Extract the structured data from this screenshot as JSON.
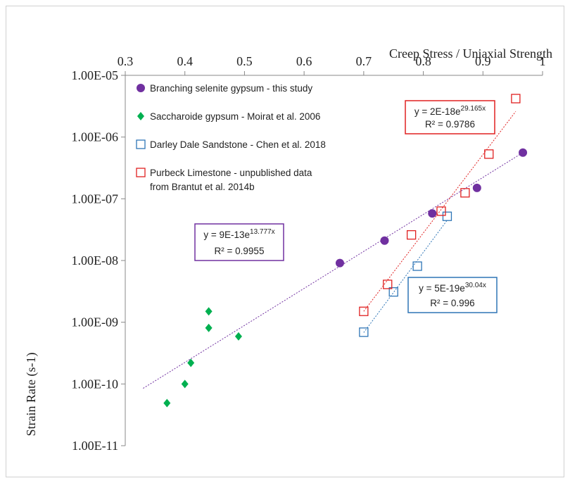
{
  "chart_data": {
    "type": "scatter",
    "xlabel": "Creep Stress / Uniaxial Strength",
    "ylabel": "Strain Rate (s-1)",
    "xlim": [
      0.3,
      1
    ],
    "xticks": [
      0.3,
      0.4,
      0.5,
      0.6,
      0.7,
      0.8,
      0.9,
      1
    ],
    "ylim": [
      1e-11,
      1e-05
    ],
    "log_y": true,
    "yticks": [
      {
        "value": 1e-05,
        "label": "1.00E-05"
      },
      {
        "value": 1e-06,
        "label": "1.00E-06"
      },
      {
        "value": 1e-07,
        "label": "1.00E-07"
      },
      {
        "value": 1e-08,
        "label": "1.00E-08"
      },
      {
        "value": 1e-09,
        "label": "1.00E-09"
      },
      {
        "value": 1e-10,
        "label": "1.00E-10"
      },
      {
        "value": 1e-11,
        "label": "1.00E-11"
      }
    ],
    "legend": "upper left",
    "series": [
      {
        "name": "Branching selenite gypsum - this study",
        "color": "#7030a0",
        "marker": "circle",
        "x": [
          0.66,
          0.735,
          0.815,
          0.89,
          0.967
        ],
        "values": [
          9.1e-09,
          2.1e-08,
          5.8e-08,
          1.5e-07,
          5.6e-07
        ],
        "trendline": {
          "x": [
            0.33,
            0.967
          ],
          "values": [
            8.5e-11,
            5.6e-07
          ]
        },
        "equation": {
          "text": "y = 9E-13e",
          "sup": "13.777x",
          "r2": "R² = 0.9955"
        }
      },
      {
        "name": "Saccharoide gypsum - Moirat et al. 2006",
        "color": "#00b050",
        "marker": "diamond",
        "x": [
          0.44,
          0.44,
          0.49,
          0.41,
          0.4,
          0.37
        ],
        "values": [
          1.5e-09,
          8.1e-10,
          5.9e-10,
          2.2e-10,
          1e-10,
          4.9e-11
        ]
      },
      {
        "name": "Darley Dale Sandstone - Chen et al. 2018",
        "color": "#2e75b6",
        "marker": "square",
        "x": [
          0.7,
          0.75,
          0.79,
          0.84
        ],
        "values": [
          6.9e-10,
          3.1e-09,
          8.1e-09,
          5.2e-08
        ],
        "trendline": {
          "x": [
            0.7,
            0.84
          ],
          "values": [
            6.8e-10,
            4.5e-08
          ]
        },
        "equation": {
          "text": "y = 5E-19e",
          "sup": "30.04x",
          "r2": "R² = 0.996"
        }
      },
      {
        "name": "Purbeck Limestone - unpublished data\nfrom Brantut et al. 2014b",
        "color": "#e02020",
        "marker": "square",
        "x": [
          0.7,
          0.74,
          0.78,
          0.83,
          0.87,
          0.91,
          0.955
        ],
        "values": [
          1.5e-09,
          4.1e-09,
          2.6e-08,
          6.3e-08,
          1.25e-07,
          5.3e-07,
          4.2e-06
        ],
        "trendline": {
          "x": [
            0.7,
            0.955
          ],
          "values": [
            1.5e-09,
            2.6e-06
          ]
        },
        "equation": {
          "text": "y = 2E-18e",
          "sup": "29.165x",
          "r2": "R² = 0.9786"
        }
      }
    ]
  }
}
